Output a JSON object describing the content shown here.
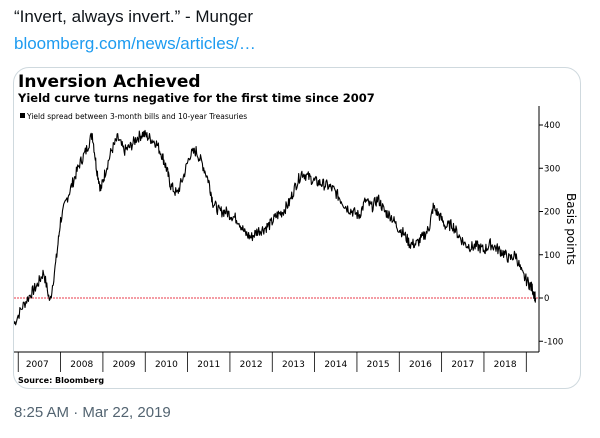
{
  "tweet": {
    "text": "“Invert, always invert.” - Munger",
    "link": "bloomberg.com/news/articles/…",
    "timestamp": "8:25 AM · Mar 22, 2019"
  },
  "chart_data": {
    "type": "line",
    "title": "Inversion Achieved",
    "subtitle": "Yield curve turns negative for the first time since 2007",
    "legend": "Yield spread between 3-month bills and 10-year Treasuries",
    "ylabel": "Basis points",
    "source": "Source: Bloomberg",
    "ylim": [
      -120,
      440
    ],
    "xlim": [
      2006.9,
      2019.3
    ],
    "yticks": [
      "400",
      "300",
      "200",
      "100",
      "0",
      "-100"
    ],
    "ytick_values": [
      400,
      300,
      200,
      100,
      0,
      -100
    ],
    "xticks": [
      "2007",
      "2008",
      "2009",
      "2010",
      "2011",
      "2012",
      "2013",
      "2014",
      "2015",
      "2016",
      "2017",
      "2018"
    ],
    "zero_line_color": "#e83a4a",
    "line_color": "#000000",
    "series": [
      {
        "name": "Yield spread between 3-month bills and 10-year Treasuries",
        "x": [
          2006.9,
          2007.1,
          2007.3,
          2007.45,
          2007.6,
          2007.75,
          2007.9,
          2008.0,
          2008.15,
          2008.3,
          2008.45,
          2008.6,
          2008.75,
          2008.85,
          2008.95,
          2009.05,
          2009.2,
          2009.35,
          2009.5,
          2009.65,
          2009.8,
          2009.95,
          2010.1,
          2010.25,
          2010.4,
          2010.5,
          2010.6,
          2010.75,
          2010.9,
          2011.05,
          2011.2,
          2011.35,
          2011.5,
          2011.6,
          2011.75,
          2011.9,
          2012.05,
          2012.2,
          2012.35,
          2012.5,
          2012.65,
          2012.8,
          2012.95,
          2013.1,
          2013.25,
          2013.4,
          2013.55,
          2013.7,
          2013.85,
          2014.0,
          2014.15,
          2014.3,
          2014.45,
          2014.6,
          2014.75,
          2014.9,
          2015.05,
          2015.2,
          2015.35,
          2015.5,
          2015.65,
          2015.8,
          2015.95,
          2016.1,
          2016.25,
          2016.4,
          2016.55,
          2016.7,
          2016.8,
          2016.95,
          2017.1,
          2017.25,
          2017.4,
          2017.55,
          2017.7,
          2017.85,
          2018.0,
          2018.15,
          2018.3,
          2018.45,
          2018.6,
          2018.75,
          2018.9,
          2019.05,
          2019.15,
          2019.22
        ],
        "y": [
          -60,
          -20,
          10,
          30,
          60,
          -10,
          90,
          180,
          230,
          270,
          310,
          340,
          380,
          300,
          250,
          290,
          340,
          370,
          340,
          350,
          370,
          380,
          370,
          360,
          330,
          300,
          260,
          240,
          280,
          330,
          340,
          310,
          270,
          220,
          200,
          200,
          190,
          180,
          150,
          140,
          155,
          160,
          170,
          190,
          200,
          220,
          260,
          290,
          280,
          270,
          265,
          260,
          250,
          230,
          210,
          200,
          190,
          225,
          210,
          230,
          200,
          190,
          165,
          150,
          125,
          125,
          140,
          160,
          210,
          190,
          165,
          170,
          145,
          125,
          118,
          120,
          110,
          125,
          115,
          105,
          90,
          100,
          55,
          35,
          20,
          0
        ]
      }
    ]
  }
}
